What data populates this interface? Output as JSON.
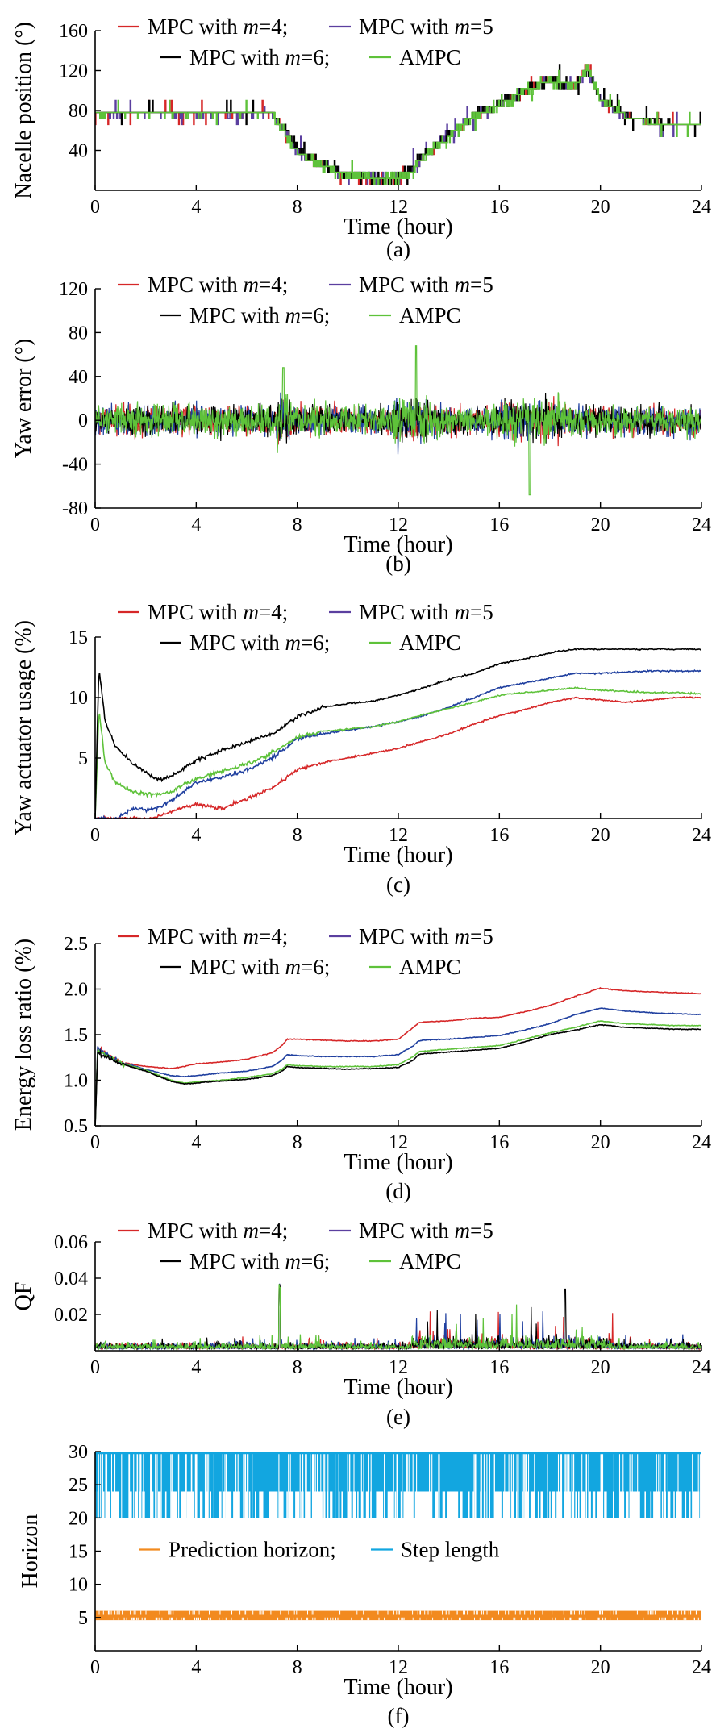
{
  "colors": {
    "mpc4": "#d62728",
    "mpc5": "#5b3f9f",
    "mpc5_curve": "#1f3f9f",
    "mpc6": "#000000",
    "ampc": "#5ec23a",
    "prediction": "#f28a1f",
    "step": "#12a6e0"
  },
  "legend_labels": {
    "mpc4_prefix": "MPC with ",
    "mpc4_var": "m",
    "mpc4_suffix": "=4;",
    "mpc5_prefix": "MPC with ",
    "mpc5_var": "m",
    "mpc5_suffix": "=5",
    "mpc6_prefix": "MPC with ",
    "mpc6_var": "m",
    "mpc6_suffix": "=6;",
    "ampc": "AMPC",
    "prediction": "Prediction horizon;",
    "step": "Step length"
  },
  "chart_data": [
    {
      "type": "line",
      "caption": "(a)",
      "xlabel": "Time (hour)",
      "ylabel": "Nacelle position (°)",
      "xlim": [
        0,
        24
      ],
      "ylim": [
        0,
        160
      ],
      "xticks": [
        "0",
        "4",
        "8",
        "12",
        "16",
        "20",
        "24"
      ],
      "yticks": [
        "40",
        "80",
        "120",
        "160"
      ],
      "yticks_values": [
        40,
        80,
        120,
        160
      ],
      "x": [
        0,
        1,
        2,
        3,
        4,
        5,
        6,
        7,
        7.5,
        8,
        9,
        10,
        11,
        12,
        12.5,
        13,
        14,
        15,
        16,
        17,
        18,
        19,
        19.5,
        20,
        21,
        22,
        23,
        24
      ],
      "series": [
        {
          "name": "MPC with m=4",
          "key": "mpc4",
          "values": [
            77,
            77,
            77,
            77,
            76,
            76,
            76,
            76,
            60,
            40,
            25,
            15,
            10,
            10,
            20,
            35,
            55,
            75,
            85,
            100,
            110,
            105,
            125,
            90,
            75,
            68,
            65,
            65
          ]
        },
        {
          "name": "MPC with m=5",
          "key": "mpc5",
          "values": [
            76,
            76,
            76,
            76,
            76,
            76,
            76,
            76,
            60,
            40,
            25,
            15,
            12,
            12,
            20,
            35,
            55,
            75,
            85,
            100,
            110,
            105,
            122,
            90,
            75,
            68,
            66,
            66
          ]
        },
        {
          "name": "MPC with m=6",
          "key": "mpc6",
          "values": [
            77,
            77,
            77,
            77,
            77,
            77,
            77,
            77,
            62,
            42,
            26,
            15,
            12,
            12,
            22,
            36,
            56,
            76,
            86,
            100,
            110,
            105,
            120,
            92,
            76,
            70,
            67,
            67
          ]
        },
        {
          "name": "AMPC",
          "key": "ampc",
          "values": [
            76,
            76,
            76,
            76,
            76,
            76,
            76,
            76,
            58,
            38,
            24,
            15,
            12,
            12,
            20,
            34,
            54,
            74,
            84,
            100,
            110,
            105,
            123,
            90,
            74,
            68,
            66,
            66
          ]
        }
      ]
    },
    {
      "type": "line",
      "caption": "(b)",
      "xlabel": "Time (hour)",
      "ylabel": "Yaw error (°)",
      "xlim": [
        0,
        24
      ],
      "ylim": [
        -80,
        120
      ],
      "xticks": [
        "0",
        "4",
        "8",
        "12",
        "16",
        "20",
        "24"
      ],
      "yticks": [
        "-80",
        "-40",
        "0",
        "40",
        "80",
        "120"
      ],
      "yticks_values": [
        -80,
        -40,
        0,
        40,
        80,
        120
      ],
      "series": [
        {
          "name": "MPC with m=4",
          "key": "mpc4",
          "amplitude": 18
        },
        {
          "name": "MPC with m=5",
          "key": "mpc5",
          "amplitude": 18
        },
        {
          "name": "MPC with m=6",
          "key": "mpc6",
          "amplitude": 18
        },
        {
          "name": "AMPC",
          "key": "ampc",
          "amplitude": 20
        }
      ],
      "annotations": {
        "peak_time": 12.7,
        "peak_value": 68,
        "trough_time": 17.2,
        "trough_value": -68
      }
    },
    {
      "type": "line",
      "caption": "(c)",
      "xlabel": "Time (hour)",
      "ylabel": "Yaw actuator usage (%)",
      "xlim": [
        0,
        24
      ],
      "ylim": [
        0,
        15
      ],
      "xticks": [
        "0",
        "4",
        "8",
        "12",
        "16",
        "20",
        "24"
      ],
      "yticks": [
        "5",
        "10",
        "15"
      ],
      "yticks_values": [
        5,
        10,
        15
      ],
      "x": [
        0,
        0.15,
        0.4,
        0.8,
        1.5,
        2.2,
        2.6,
        3,
        4,
        5,
        6,
        7,
        8,
        9,
        10,
        11,
        12,
        13,
        14,
        15,
        16,
        17,
        18,
        19,
        20,
        21,
        22,
        23,
        24
      ],
      "series": [
        {
          "name": "MPC with m=4",
          "key": "mpc4",
          "values": [
            0,
            0,
            0,
            0,
            0,
            0,
            0.2,
            0.6,
            1.2,
            0.8,
            1.6,
            2.5,
            4.0,
            4.6,
            5.0,
            5.4,
            5.8,
            6.4,
            7.0,
            7.8,
            8.5,
            9.0,
            9.6,
            10.0,
            9.8,
            9.6,
            9.8,
            10.0,
            10.0
          ]
        },
        {
          "name": "MPC with m=5",
          "key": "mpc5",
          "values": [
            0,
            0,
            0,
            0,
            0.8,
            0.8,
            0.9,
            1.5,
            3.0,
            3.4,
            4.0,
            5.0,
            6.6,
            7.0,
            7.3,
            7.6,
            8.0,
            8.5,
            9.2,
            10.0,
            10.8,
            11.2,
            11.6,
            12.0,
            12.0,
            12.1,
            12.2,
            12.2,
            12.2
          ]
        },
        {
          "name": "MPC with m=6",
          "key": "mpc6",
          "values": [
            0,
            12.5,
            8.0,
            6.0,
            4.5,
            3.5,
            3.2,
            3.5,
            4.8,
            5.6,
            6.3,
            7.0,
            8.4,
            9.2,
            9.5,
            9.7,
            10.2,
            10.8,
            11.5,
            12.0,
            12.8,
            13.2,
            13.7,
            14.0,
            14.0,
            14.0,
            14.0,
            14.0,
            14.0
          ]
        },
        {
          "name": "AMPC",
          "key": "ampc",
          "values": [
            0,
            9.0,
            4.5,
            3.0,
            2.2,
            2.0,
            2.0,
            2.2,
            3.3,
            3.9,
            4.5,
            5.4,
            6.7,
            7.2,
            7.4,
            7.6,
            8.0,
            8.6,
            9.1,
            9.6,
            10.2,
            10.4,
            10.6,
            10.8,
            10.6,
            10.5,
            10.4,
            10.4,
            10.3
          ]
        }
      ]
    },
    {
      "type": "line",
      "caption": "(d)",
      "xlabel": "Time (hour)",
      "ylabel": "Energy loss ratio (%)",
      "xlim": [
        0,
        24
      ],
      "ylim": [
        0.5,
        2.5
      ],
      "xticks": [
        "0",
        "4",
        "8",
        "12",
        "16",
        "20",
        "24"
      ],
      "yticks": [
        "0.5",
        "1.0",
        "1.5",
        "2.0",
        "2.5"
      ],
      "yticks_values": [
        0.5,
        1.0,
        1.5,
        2.0,
        2.5
      ],
      "x": [
        0,
        0.1,
        0.5,
        1,
        2,
        3,
        3.5,
        4,
        5,
        6,
        7,
        7.4,
        7.6,
        8,
        9,
        10,
        11,
        12,
        12.6,
        12.8,
        13,
        14,
        15,
        16,
        17,
        18,
        19,
        20,
        21,
        22,
        23,
        24
      ],
      "series": [
        {
          "name": "MPC with m=4",
          "key": "mpc4",
          "values": [
            0.5,
            1.35,
            1.28,
            1.2,
            1.15,
            1.13,
            1.15,
            1.18,
            1.2,
            1.23,
            1.3,
            1.38,
            1.45,
            1.45,
            1.44,
            1.43,
            1.43,
            1.45,
            1.58,
            1.63,
            1.64,
            1.65,
            1.68,
            1.69,
            1.75,
            1.82,
            1.92,
            2.01,
            1.98,
            1.97,
            1.96,
            1.95
          ]
        },
        {
          "name": "MPC with m=5",
          "key": "mpc5",
          "values": [
            0.5,
            1.35,
            1.27,
            1.2,
            1.12,
            1.05,
            1.04,
            1.05,
            1.08,
            1.1,
            1.15,
            1.22,
            1.28,
            1.27,
            1.26,
            1.26,
            1.26,
            1.28,
            1.38,
            1.43,
            1.44,
            1.45,
            1.47,
            1.49,
            1.55,
            1.62,
            1.72,
            1.79,
            1.76,
            1.74,
            1.73,
            1.72
          ]
        },
        {
          "name": "MPC with m=6",
          "key": "mpc6",
          "values": [
            0.5,
            1.3,
            1.25,
            1.18,
            1.1,
            0.99,
            0.96,
            0.97,
            0.99,
            1.01,
            1.05,
            1.1,
            1.15,
            1.14,
            1.13,
            1.12,
            1.13,
            1.14,
            1.22,
            1.28,
            1.29,
            1.31,
            1.33,
            1.35,
            1.42,
            1.5,
            1.55,
            1.61,
            1.58,
            1.57,
            1.56,
            1.56
          ]
        },
        {
          "name": "AMPC",
          "key": "ampc",
          "values": [
            0.5,
            1.32,
            1.26,
            1.19,
            1.11,
            1.0,
            0.97,
            0.98,
            1.0,
            1.03,
            1.07,
            1.12,
            1.17,
            1.16,
            1.15,
            1.15,
            1.15,
            1.17,
            1.26,
            1.31,
            1.32,
            1.34,
            1.36,
            1.38,
            1.45,
            1.52,
            1.58,
            1.65,
            1.62,
            1.61,
            1.6,
            1.6
          ]
        }
      ]
    },
    {
      "type": "line",
      "caption": "(e)",
      "xlabel": "Time (hour)",
      "ylabel": "QF",
      "xlim": [
        0,
        24
      ],
      "ylim": [
        0,
        0.06
      ],
      "xticks": [
        "0",
        "4",
        "8",
        "12",
        "16",
        "20",
        "24"
      ],
      "yticks": [
        "0.02",
        "0.04",
        "0.06"
      ],
      "yticks_values": [
        0.02,
        0.04,
        0.06
      ],
      "series": [
        {
          "name": "MPC with m=4",
          "key": "mpc4"
        },
        {
          "name": "MPC with m=5",
          "key": "mpc5"
        },
        {
          "name": "MPC with m=6",
          "key": "mpc6"
        },
        {
          "name": "AMPC",
          "key": "ampc"
        }
      ],
      "annotations": {
        "peak_time": 7.3,
        "peak_value": 0.037,
        "second_peak_time": 18.6,
        "second_peak_value": 0.034
      }
    },
    {
      "type": "line",
      "caption": "(f)",
      "xlabel": "Time (hour)",
      "ylabel": "Horizon",
      "xlim": [
        0,
        24
      ],
      "ylim": [
        0,
        30
      ],
      "xticks": [
        "0",
        "4",
        "8",
        "12",
        "16",
        "20",
        "24"
      ],
      "yticks": [
        "5",
        "10",
        "15",
        "20",
        "25",
        "30"
      ],
      "yticks_values": [
        5,
        10,
        15,
        20,
        25,
        30
      ],
      "series": [
        {
          "name": "Prediction horizon",
          "key": "prediction",
          "levels": [
            5,
            6
          ]
        },
        {
          "name": "Step length",
          "key": "step",
          "levels": [
            20,
            25,
            30
          ]
        }
      ]
    }
  ]
}
